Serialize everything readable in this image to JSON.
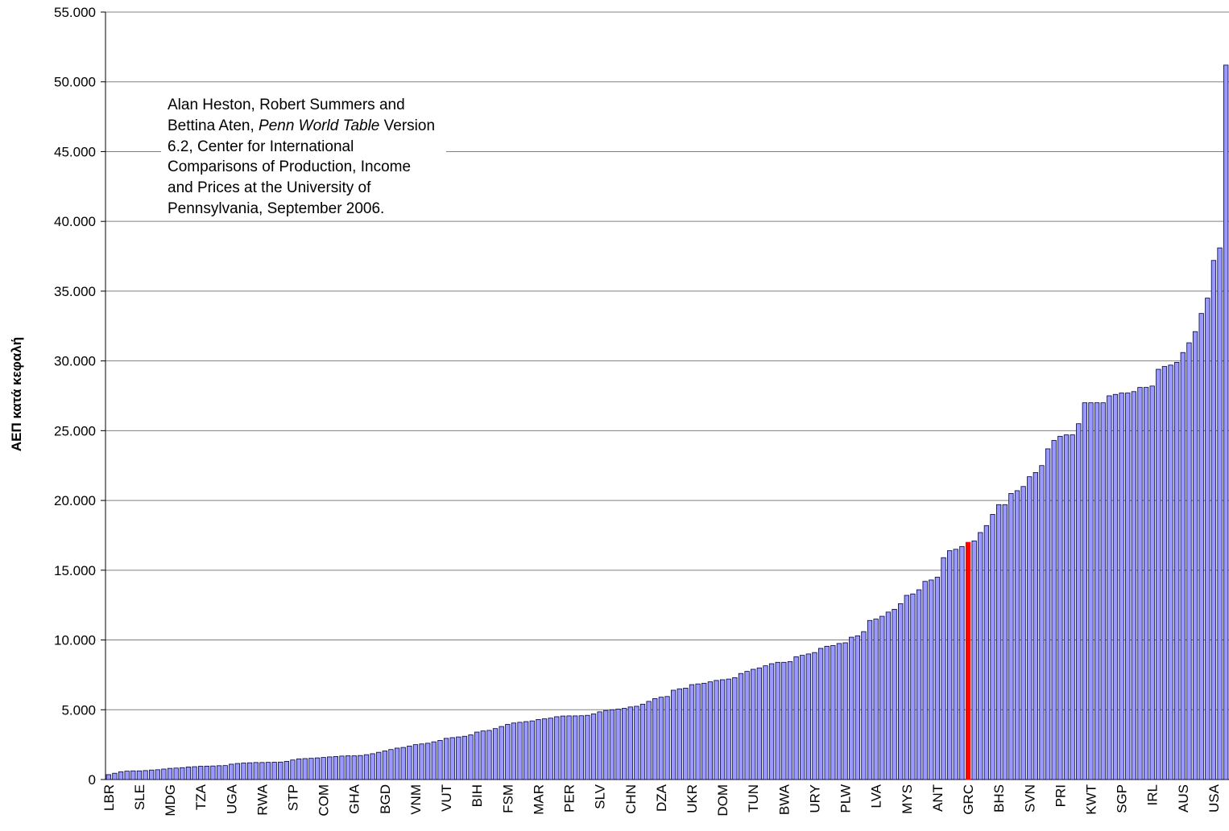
{
  "chart_data": {
    "type": "bar",
    "y_label": "ΑΕΠ κατά κεφαλή",
    "annotation": [
      {
        "text": "Alan Heston, Robert Summers and Bettina Aten, ",
        "italic": false
      },
      {
        "text": "Penn World Table",
        "italic": true
      },
      {
        "text": " Version 6.2, Center for International Comparisons of Production, Income and Prices at the University of Pennsylvania, September 2006.",
        "italic": false
      }
    ],
    "categories": [
      "LBR",
      null,
      null,
      null,
      null,
      "SLE",
      null,
      null,
      null,
      null,
      "MDG",
      null,
      null,
      null,
      null,
      "TZA",
      null,
      null,
      null,
      null,
      "UGA",
      null,
      null,
      null,
      null,
      "RWA",
      null,
      null,
      null,
      null,
      "STP",
      null,
      null,
      null,
      null,
      "COM",
      null,
      null,
      null,
      null,
      "GHA",
      null,
      null,
      null,
      null,
      "BGD",
      null,
      null,
      null,
      null,
      "VNM",
      null,
      null,
      null,
      null,
      "VUT",
      null,
      null,
      null,
      null,
      "BIH",
      null,
      null,
      null,
      null,
      "FSM",
      null,
      null,
      null,
      null,
      "MAR",
      null,
      null,
      null,
      null,
      "PER",
      null,
      null,
      null,
      null,
      "SLV",
      null,
      null,
      null,
      null,
      "CHN",
      null,
      null,
      null,
      null,
      "DZA",
      null,
      null,
      null,
      null,
      "UKR",
      null,
      null,
      null,
      null,
      "DOM",
      null,
      null,
      null,
      null,
      "TUN",
      null,
      null,
      null,
      null,
      "BWA",
      null,
      null,
      null,
      null,
      "URY",
      null,
      null,
      null,
      null,
      "PLW",
      null,
      null,
      null,
      null,
      "LVA",
      null,
      null,
      null,
      null,
      "MYS",
      null,
      null,
      null,
      null,
      "ANT",
      null,
      null,
      null,
      null,
      "GRC",
      null,
      null,
      null,
      null,
      "BHS",
      null,
      null,
      null,
      null,
      "SVN",
      null,
      null,
      null,
      null,
      "PRI",
      null,
      null,
      null,
      null,
      "KWT",
      null,
      null,
      null,
      null,
      "SGP",
      null,
      null,
      null,
      null,
      "IRL",
      null,
      null,
      null,
      null,
      "AUS",
      null,
      null,
      null,
      null,
      "USA",
      null,
      null
    ],
    "values": [
      350,
      450,
      550,
      600,
      620,
      620,
      640,
      680,
      700,
      750,
      800,
      820,
      850,
      900,
      920,
      950,
      960,
      970,
      990,
      1000,
      1100,
      1150,
      1180,
      1200,
      1220,
      1220,
      1230,
      1240,
      1250,
      1300,
      1400,
      1480,
      1500,
      1520,
      1550,
      1580,
      1620,
      1650,
      1680,
      1700,
      1700,
      1720,
      1780,
      1850,
      1950,
      2050,
      2150,
      2250,
      2300,
      2400,
      2500,
      2550,
      2600,
      2700,
      2800,
      2950,
      3000,
      3050,
      3100,
      3200,
      3400,
      3480,
      3520,
      3650,
      3800,
      3950,
      4050,
      4100,
      4150,
      4200,
      4300,
      4350,
      4400,
      4500,
      4550,
      4560,
      4560,
      4570,
      4600,
      4700,
      4850,
      4950,
      5000,
      5050,
      5100,
      5200,
      5250,
      5400,
      5600,
      5800,
      5900,
      5950,
      6400,
      6500,
      6550,
      6800,
      6850,
      6900,
      7000,
      7100,
      7150,
      7200,
      7300,
      7600,
      7750,
      7900,
      8000,
      8150,
      8300,
      8400,
      8400,
      8450,
      8800,
      8900,
      9000,
      9100,
      9400,
      9550,
      9600,
      9750,
      9800,
      10200,
      10300,
      10600,
      11400,
      11500,
      11700,
      12000,
      12200,
      12600,
      13200,
      13300,
      13600,
      14200,
      14300,
      14500,
      15900,
      16400,
      16500,
      16700,
      17000,
      17100,
      17700,
      18200,
      19000,
      19700,
      19700,
      20500,
      20700,
      21000,
      21700,
      22000,
      22500,
      23700,
      24300,
      24600,
      24700,
      24700,
      25500,
      27000,
      27000,
      27000,
      27000,
      27500,
      27600,
      27700,
      27700,
      27800,
      28100,
      28100,
      28200,
      29400,
      29600,
      29700,
      29900,
      30600,
      31300,
      32100,
      33400,
      34500,
      37200,
      38100,
      51200
    ],
    "color": "#9999ff",
    "highlight": {
      "category": "GRC",
      "color": "#ff0000"
    },
    "ylim": [
      0,
      55000
    ],
    "yticks": [
      0,
      {
        "value": 5000,
        "label": "5.000"
      },
      {
        "value": 10000,
        "label": "10.000"
      },
      {
        "value": 15000,
        "label": "15.000"
      },
      {
        "value": 20000,
        "label": "20.000"
      },
      {
        "value": 25000,
        "label": "25.000"
      },
      {
        "value": 30000,
        "label": "30.000"
      },
      {
        "value": 35000,
        "label": "35.000"
      },
      {
        "value": 40000,
        "label": "40.000"
      },
      {
        "value": 45000,
        "label": "45.000"
      },
      {
        "value": 50000,
        "label": "50.000"
      },
      {
        "value": 55000,
        "label": "55.000"
      }
    ],
    "grid": true
  }
}
